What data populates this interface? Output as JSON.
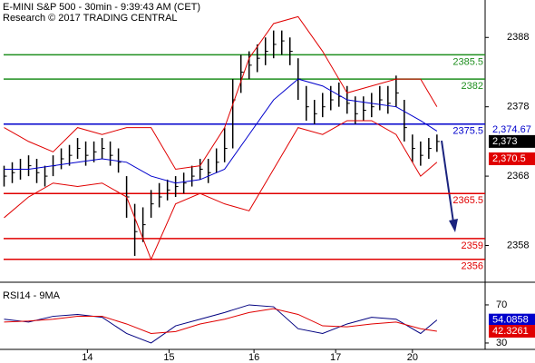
{
  "chart_data": {
    "type": "ohlc",
    "title": "E-MINI S&P 500 - 30min - 9:39:43 AM (CET)",
    "subtitle": "Research © 2017 TRADING CENTRAL",
    "xlim": [
      -0.5,
      58.9
    ],
    "xticks": [
      {
        "value": 10.2,
        "label": "14"
      },
      {
        "value": 20.2,
        "label": "15"
      },
      {
        "value": 30.6,
        "label": "16"
      },
      {
        "value": 40.6,
        "label": "17"
      },
      {
        "value": 50,
        "label": "20"
      }
    ],
    "ylim": [
      2352.7,
      2393.4
    ],
    "yticks": [
      2358,
      2368,
      2378,
      2388
    ],
    "price": {
      "x": [
        0,
        1,
        2,
        3,
        4,
        5,
        6,
        7,
        8,
        9,
        10,
        11,
        12,
        13,
        14,
        15,
        16,
        17,
        18,
        19,
        20,
        21,
        22,
        23,
        24,
        25,
        26,
        27,
        28,
        29,
        30,
        31,
        32,
        33,
        34,
        35,
        36,
        37,
        38,
        39,
        40,
        41,
        42,
        43,
        44,
        45,
        46,
        47,
        48,
        49,
        50,
        51,
        52,
        53
      ],
      "high": [
        2369.5,
        2370,
        2370.5,
        2371,
        2370.5,
        2369.5,
        2371,
        2372,
        2372.5,
        2373.5,
        2373,
        2373,
        2373.5,
        2373,
        2372,
        2368,
        2364,
        2363.5,
        2366,
        2367,
        2367.5,
        2368,
        2368.5,
        2369.5,
        2370.5,
        2370.5,
        2372,
        2375,
        2382,
        2385.5,
        2386,
        2387,
        2388,
        2389,
        2389,
        2388,
        2385,
        2381,
        2379,
        2380,
        2381,
        2381.5,
        2381,
        2379.5,
        2379.5,
        2380,
        2381,
        2381,
        2382.5,
        2379,
        2374,
        2373,
        2373.5,
        2374
      ],
      "low": [
        2366.5,
        2367,
        2367.5,
        2368,
        2367,
        2366.5,
        2368,
        2369,
        2369.5,
        2370.5,
        2369.5,
        2370,
        2370.5,
        2369.5,
        2368.5,
        2362,
        2356.5,
        2358.5,
        2362,
        2363.5,
        2364.5,
        2365,
        2365.5,
        2366.5,
        2367.5,
        2367,
        2368.5,
        2370,
        2372,
        2380,
        2382,
        2383,
        2384,
        2385,
        2385.5,
        2384,
        2379,
        2376,
        2375.5,
        2376.5,
        2377.5,
        2378,
        2377,
        2375.5,
        2376,
        2376.5,
        2377.5,
        2377,
        2378,
        2373,
        2370,
        2369.5,
        2370.5,
        2371.5
      ],
      "close": [
        2368,
        2368.5,
        2369,
        2369.5,
        2368.5,
        2368,
        2369.5,
        2370.5,
        2371,
        2372,
        2371,
        2371.5,
        2372,
        2371,
        2370,
        2365,
        2360,
        2361,
        2364,
        2365,
        2366,
        2366.5,
        2367,
        2368,
        2369,
        2368.5,
        2370,
        2372,
        2379,
        2383,
        2384,
        2385,
        2386,
        2387,
        2387.5,
        2386,
        2382,
        2378,
        2377,
        2378,
        2379,
        2379.5,
        2378.5,
        2377,
        2377.5,
        2378,
        2379,
        2378.5,
        2380,
        2375,
        2372,
        2371,
        2372,
        2373
      ],
      "color": "#000000"
    },
    "bands": {
      "x": [
        0,
        3,
        6,
        9,
        12,
        15,
        18,
        21,
        24,
        27,
        30,
        33,
        36,
        39,
        42,
        45,
        48,
        51,
        53
      ],
      "upper": [
        2375,
        2373,
        2371.5,
        2375,
        2374,
        2375,
        2375,
        2369,
        2369.5,
        2375,
        2385,
        2390,
        2391,
        2386,
        2380,
        2381,
        2382,
        2382,
        2378
      ],
      "middle": [
        2369,
        2369,
        2369.5,
        2370,
        2370.5,
        2370,
        2368,
        2367,
        2367.5,
        2369,
        2374,
        2379,
        2382,
        2381,
        2379,
        2378.5,
        2378,
        2376,
        2374.5
      ],
      "lower": [
        2362,
        2365,
        2367,
        2366.5,
        2367,
        2365,
        2356,
        2364,
        2365.5,
        2364,
        2363,
        2369,
        2375,
        2374,
        2376,
        2376,
        2374,
        2368,
        2370
      ],
      "band_color": "#e00000",
      "middle_color": "#0000cc"
    },
    "levels": [
      {
        "value": 2385.5,
        "color": "#1f8f1f"
      },
      {
        "value": 2382,
        "color": "#1f8f1f"
      },
      {
        "value": 2375.5,
        "color": "#0000cc"
      },
      {
        "value": 2365.5,
        "color": "#e00000"
      },
      {
        "value": 2359,
        "color": "#e00000"
      },
      {
        "value": 2356,
        "color": "#e00000"
      }
    ],
    "last_labels": [
      {
        "value": 2374.67,
        "label": "2,374.67",
        "color": "#0000cc",
        "bg": "#ffffff"
      },
      {
        "value": 2373,
        "label": "2,373",
        "color": "#ffffff",
        "bg": "#000000"
      },
      {
        "value": 2370.5,
        "label": "2,370.5",
        "color": "#ffffff",
        "bg": "#e00000"
      }
    ],
    "rsi": {
      "title": "RSI14 - 9MA",
      "ylim": [
        23.3,
        87.1
      ],
      "yticks": [
        30,
        70
      ],
      "x": [
        0,
        3,
        6,
        9,
        12,
        15,
        18,
        21,
        24,
        27,
        30,
        33,
        36,
        39,
        42,
        45,
        48,
        51,
        53
      ],
      "series": [
        {
          "color": "#000080",
          "values": [
            55,
            52,
            58,
            60,
            57,
            40,
            30,
            48,
            55,
            62,
            70,
            68,
            45,
            40,
            50,
            57,
            55,
            40,
            54.0858
          ]
        },
        {
          "color": "#e00000",
          "values": [
            52,
            53,
            55,
            58,
            58,
            50,
            40,
            42,
            50,
            55,
            62,
            66,
            60,
            48,
            47,
            50,
            52,
            45,
            42.3261
          ]
        }
      ],
      "last_labels": [
        {
          "value": 54.0858,
          "label": "54.0858",
          "color": "#ffffff",
          "bg": "#0000cc"
        },
        {
          "value": 42.3261,
          "label": "42.3261",
          "color": "#ffffff",
          "bg": "#e00000"
        }
      ]
    }
  }
}
